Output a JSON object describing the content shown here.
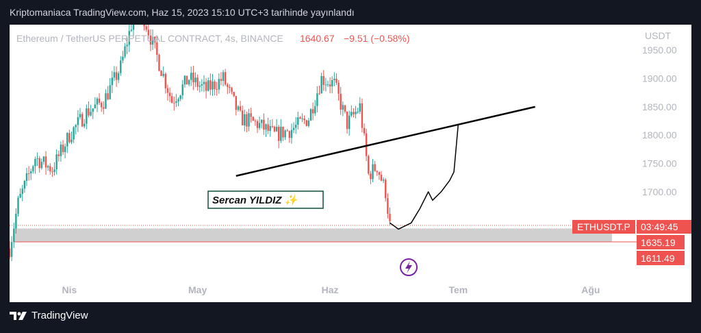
{
  "caption": "Kriptomaniaca TradingView.com, Haz 15, 2023 15:10 UTC+3 tarihinde yayınlandı",
  "brand": "TradingView",
  "colors": {
    "up": "#26a69a",
    "down": "#ef5350",
    "accent": "#e91e63",
    "signature_border": "#0d4d3d"
  },
  "header": {
    "symbol": "Ethereum / TetherUS PERPETUAL CONTRACT, 4s, BINANCE",
    "price": "1640.67",
    "change": "−9.51 (−0.58%)"
  },
  "signature": {
    "text": "Sercan YILDIZ ✨"
  },
  "badges": {
    "symbol": "ETHUSDT.P",
    "countdown": "03:49:45",
    "price1": "1635.19",
    "price2": "1611.49"
  },
  "icons": {
    "flash": "lightning-icon",
    "logo": "tradingview-logo-icon"
  },
  "chart_data": {
    "type": "candlestick",
    "currency": "USDT",
    "ylim": [
      1545,
      1995
    ],
    "y_ticks": [
      {
        "value": 1950,
        "label": "1950.00"
      },
      {
        "value": 1900,
        "label": "1900.00"
      },
      {
        "value": 1850,
        "label": "1850.00"
      },
      {
        "value": 1800,
        "label": "1800.00"
      },
      {
        "value": 1750,
        "label": "1750.00"
      },
      {
        "value": 1700,
        "label": "1700.00"
      }
    ],
    "x_range": [
      "2023-03-18",
      "2023-08-10"
    ],
    "x_ticks": [
      {
        "date": "2023-04-01",
        "label": "Nis"
      },
      {
        "date": "2023-05-01",
        "label": "May"
      },
      {
        "date": "2023-06-01",
        "label": "Haz"
      },
      {
        "date": "2023-07-01",
        "label": "Tem"
      },
      {
        "date": "2023-08-01",
        "label": "Ağu"
      }
    ],
    "price_path": [
      {
        "date": "2023-03-18",
        "price": 1600
      },
      {
        "date": "2023-03-20",
        "price": 1680
      },
      {
        "date": "2023-03-24",
        "price": 1760
      },
      {
        "date": "2023-03-28",
        "price": 1740
      },
      {
        "date": "2023-04-01",
        "price": 1800
      },
      {
        "date": "2023-04-05",
        "price": 1840
      },
      {
        "date": "2023-04-09",
        "price": 1860
      },
      {
        "date": "2023-04-13",
        "price": 1920
      },
      {
        "date": "2023-04-17",
        "price": 2040
      },
      {
        "date": "2023-04-21",
        "price": 1950
      },
      {
        "date": "2023-04-25",
        "price": 1860
      },
      {
        "date": "2023-04-29",
        "price": 1900
      },
      {
        "date": "2023-05-03",
        "price": 1880
      },
      {
        "date": "2023-05-07",
        "price": 1900
      },
      {
        "date": "2023-05-11",
        "price": 1830
      },
      {
        "date": "2023-05-15",
        "price": 1820
      },
      {
        "date": "2023-05-19",
        "price": 1800
      },
      {
        "date": "2023-05-23",
        "price": 1810
      },
      {
        "date": "2023-05-27",
        "price": 1830
      },
      {
        "date": "2023-05-30",
        "price": 1900
      },
      {
        "date": "2023-06-02",
        "price": 1890
      },
      {
        "date": "2023-06-05",
        "price": 1820
      },
      {
        "date": "2023-06-08",
        "price": 1850
      },
      {
        "date": "2023-06-10",
        "price": 1730
      },
      {
        "date": "2023-06-12",
        "price": 1745
      },
      {
        "date": "2023-06-14",
        "price": 1700
      },
      {
        "date": "2023-06-15",
        "price": 1640
      }
    ],
    "annotations": {
      "trendline": {
        "start": {
          "date": "2023-05-10",
          "price": 1728
        },
        "end": {
          "date": "2023-07-19",
          "price": 1850
        }
      },
      "support_zone": {
        "from": "2023-03-19",
        "to": "2023-08-06",
        "low": 1611.49,
        "high": 1635.19
      },
      "last_price_line": 1640.67,
      "projection": [
        {
          "date": "2023-06-15",
          "price": 1645
        },
        {
          "date": "2023-06-17",
          "price": 1634
        },
        {
          "date": "2023-06-20",
          "price": 1645
        },
        {
          "date": "2023-06-22",
          "price": 1670
        },
        {
          "date": "2023-06-24",
          "price": 1700
        },
        {
          "date": "2023-06-25",
          "price": 1685
        },
        {
          "date": "2023-06-27",
          "price": 1700
        },
        {
          "date": "2023-06-29",
          "price": 1720
        },
        {
          "date": "2023-06-30",
          "price": 1735
        },
        {
          "date": "2023-07-01",
          "price": 1818
        }
      ]
    }
  }
}
